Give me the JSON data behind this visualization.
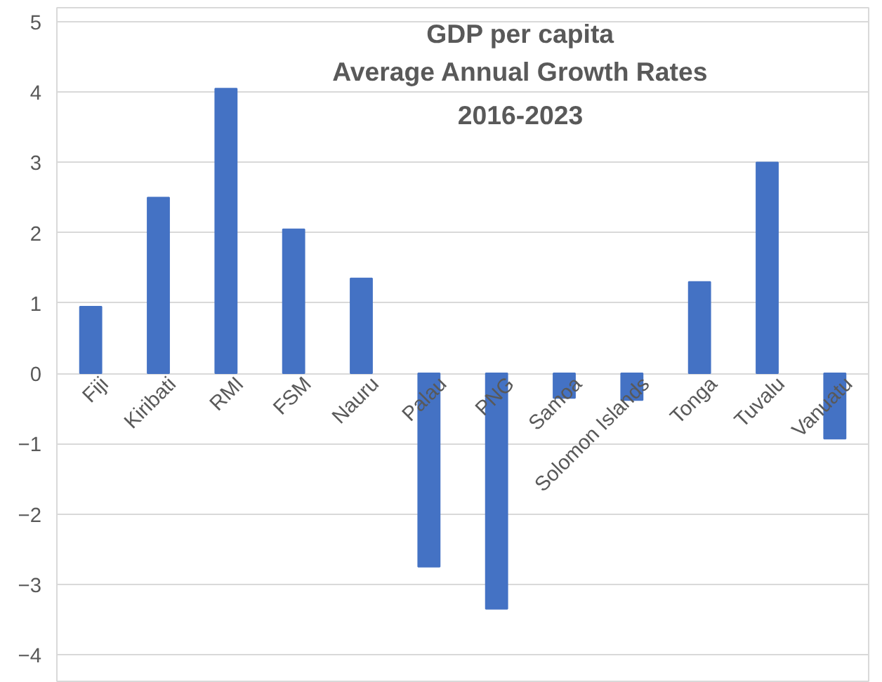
{
  "chart_data": {
    "type": "bar",
    "title": "GDP per capita\nAverage Annual Growth Rates\n2016-2023",
    "categories": [
      "Fiji",
      "Kiribati",
      "RMI",
      "FSM",
      "Nauru",
      "Palau",
      "PNG",
      "Samoa",
      "Solomon Islands",
      "Tonga",
      "Tuvalu",
      "Vanuatu"
    ],
    "values": [
      0.95,
      2.5,
      4.05,
      2.05,
      1.35,
      -2.75,
      -3.35,
      -0.35,
      -0.38,
      1.3,
      3.0,
      -0.93
    ],
    "color": "#4472c4",
    "ylim": [
      -4.4,
      5.2
    ],
    "yticks": [
      -4,
      -3,
      -2,
      -1,
      0,
      1,
      2,
      3,
      4,
      5
    ],
    "grid": "y"
  }
}
